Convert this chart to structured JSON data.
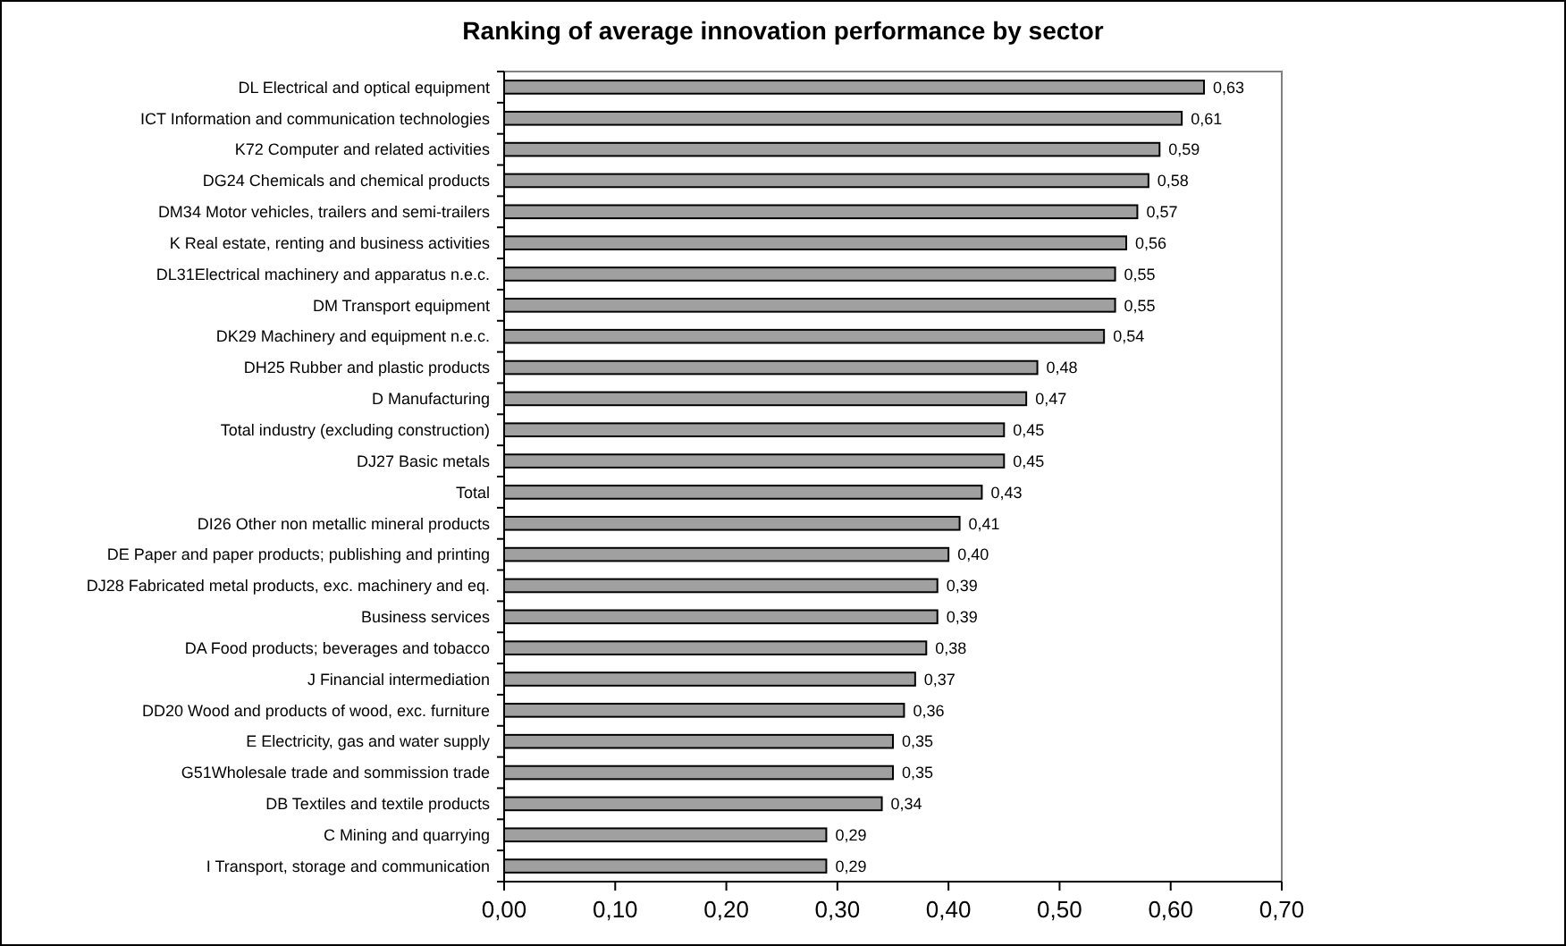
{
  "chart_data": {
    "type": "bar",
    "orientation": "horizontal",
    "title": "Ranking of average innovation performance by sector",
    "categories": [
      "DL Electrical and optical equipment",
      "ICT Information and communication technologies",
      "K72 Computer and related activities",
      "DG24 Chemicals and chemical products",
      "DM34 Motor vehicles, trailers and semi-trailers",
      "K Real estate, renting and business activities",
      "DL31Electrical machinery and apparatus n.e.c.",
      "DM  Transport equipment",
      "DK29 Machinery and equipment n.e.c.",
      "DH25 Rubber and plastic products",
      "D Manufacturing",
      "Total industry (excluding construction)",
      "DJ27 Basic metals",
      "Total",
      "DI26 Other non metallic mineral products",
      "DE Paper and paper products; publishing and printing",
      "DJ28 Fabricated metal products, exc. machinery and eq.",
      "Business services",
      "DA  Food products; beverages and tobacco",
      "J Financial intermediation",
      "DD20 Wood and products of wood, exc. furniture",
      "E Electricity, gas and water supply",
      "G51Wholesale trade and sommission trade",
      "DB  Textiles and textile products",
      "C Mining and quarrying",
      "I Transport, storage and communication"
    ],
    "values": [
      0.63,
      0.61,
      0.59,
      0.58,
      0.57,
      0.56,
      0.55,
      0.55,
      0.54,
      0.48,
      0.47,
      0.45,
      0.45,
      0.43,
      0.41,
      0.4,
      0.39,
      0.39,
      0.38,
      0.37,
      0.36,
      0.35,
      0.35,
      0.34,
      0.29,
      0.29
    ],
    "value_labels": [
      "0,63",
      "0,61",
      "0,59",
      "0,58",
      "0,57",
      "0,56",
      "0,55",
      "0,55",
      "0,54",
      "0,48",
      "0,47",
      "0,45",
      "0,45",
      "0,43",
      "0,41",
      "0,40",
      "0,39",
      "0,39",
      "0,38",
      "0,37",
      "0,36",
      "0,35",
      "0,35",
      "0,34",
      "0,29",
      "0,29"
    ],
    "color": "#a0a0a0",
    "xlim": [
      0,
      0.7
    ],
    "xticks": [
      {
        "value": 0,
        "label": "0,00"
      },
      {
        "value": 0.1,
        "label": "0,10"
      },
      {
        "value": 0.2,
        "label": "0,20"
      },
      {
        "value": 0.3,
        "label": "0,30"
      },
      {
        "value": 0.4,
        "label": "0,40"
      },
      {
        "value": 0.5,
        "label": "0,50"
      },
      {
        "value": 0.6,
        "label": "0,60"
      },
      {
        "value": 0.7,
        "label": "0,70"
      }
    ],
    "grid": false
  }
}
